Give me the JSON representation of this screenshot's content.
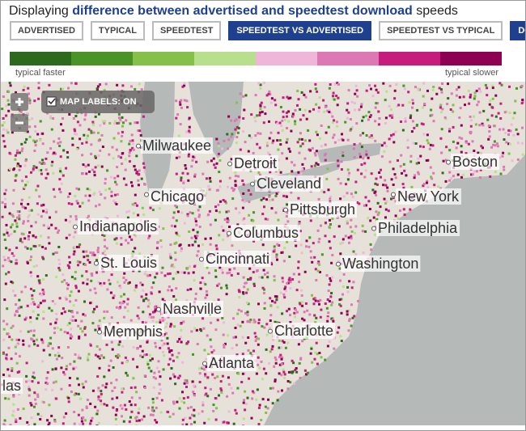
{
  "header": {
    "prefix": "Displaying",
    "highlight": "difference between advertised and speedtest download",
    "suffix": "speeds"
  },
  "tabs": [
    {
      "label": "ADVERTISED",
      "active": false
    },
    {
      "label": "TYPICAL",
      "active": false
    },
    {
      "label": "SPEEDTEST",
      "active": false
    },
    {
      "label": "SPEEDTEST VS ADVERTISED",
      "active": true
    },
    {
      "label": "SPEEDTEST VS TYPICAL",
      "active": false
    },
    {
      "label": "DOWN",
      "active": true
    }
  ],
  "legend": {
    "colors": [
      "#2d6a1e",
      "#4a9326",
      "#84c04a",
      "#b8e08c",
      "#f0b6da",
      "#de78b4",
      "#c51c7e",
      "#8e0152"
    ],
    "left_label": "typical faster",
    "right_label": "typical slower"
  },
  "map": {
    "labels_toggle": "MAP LABELS: ON",
    "cities": [
      "Milwaukee",
      "Detroit",
      "Cleveland",
      "Chicago",
      "New York",
      "Boston",
      "Pittsburgh",
      "Philadelphia",
      "Indianapolis",
      "Columbus",
      "St. Louis",
      "Cincinnati",
      "Washington",
      "Nashville",
      "Memphis",
      "Charlotte",
      "Atlanta",
      "las"
    ]
  }
}
